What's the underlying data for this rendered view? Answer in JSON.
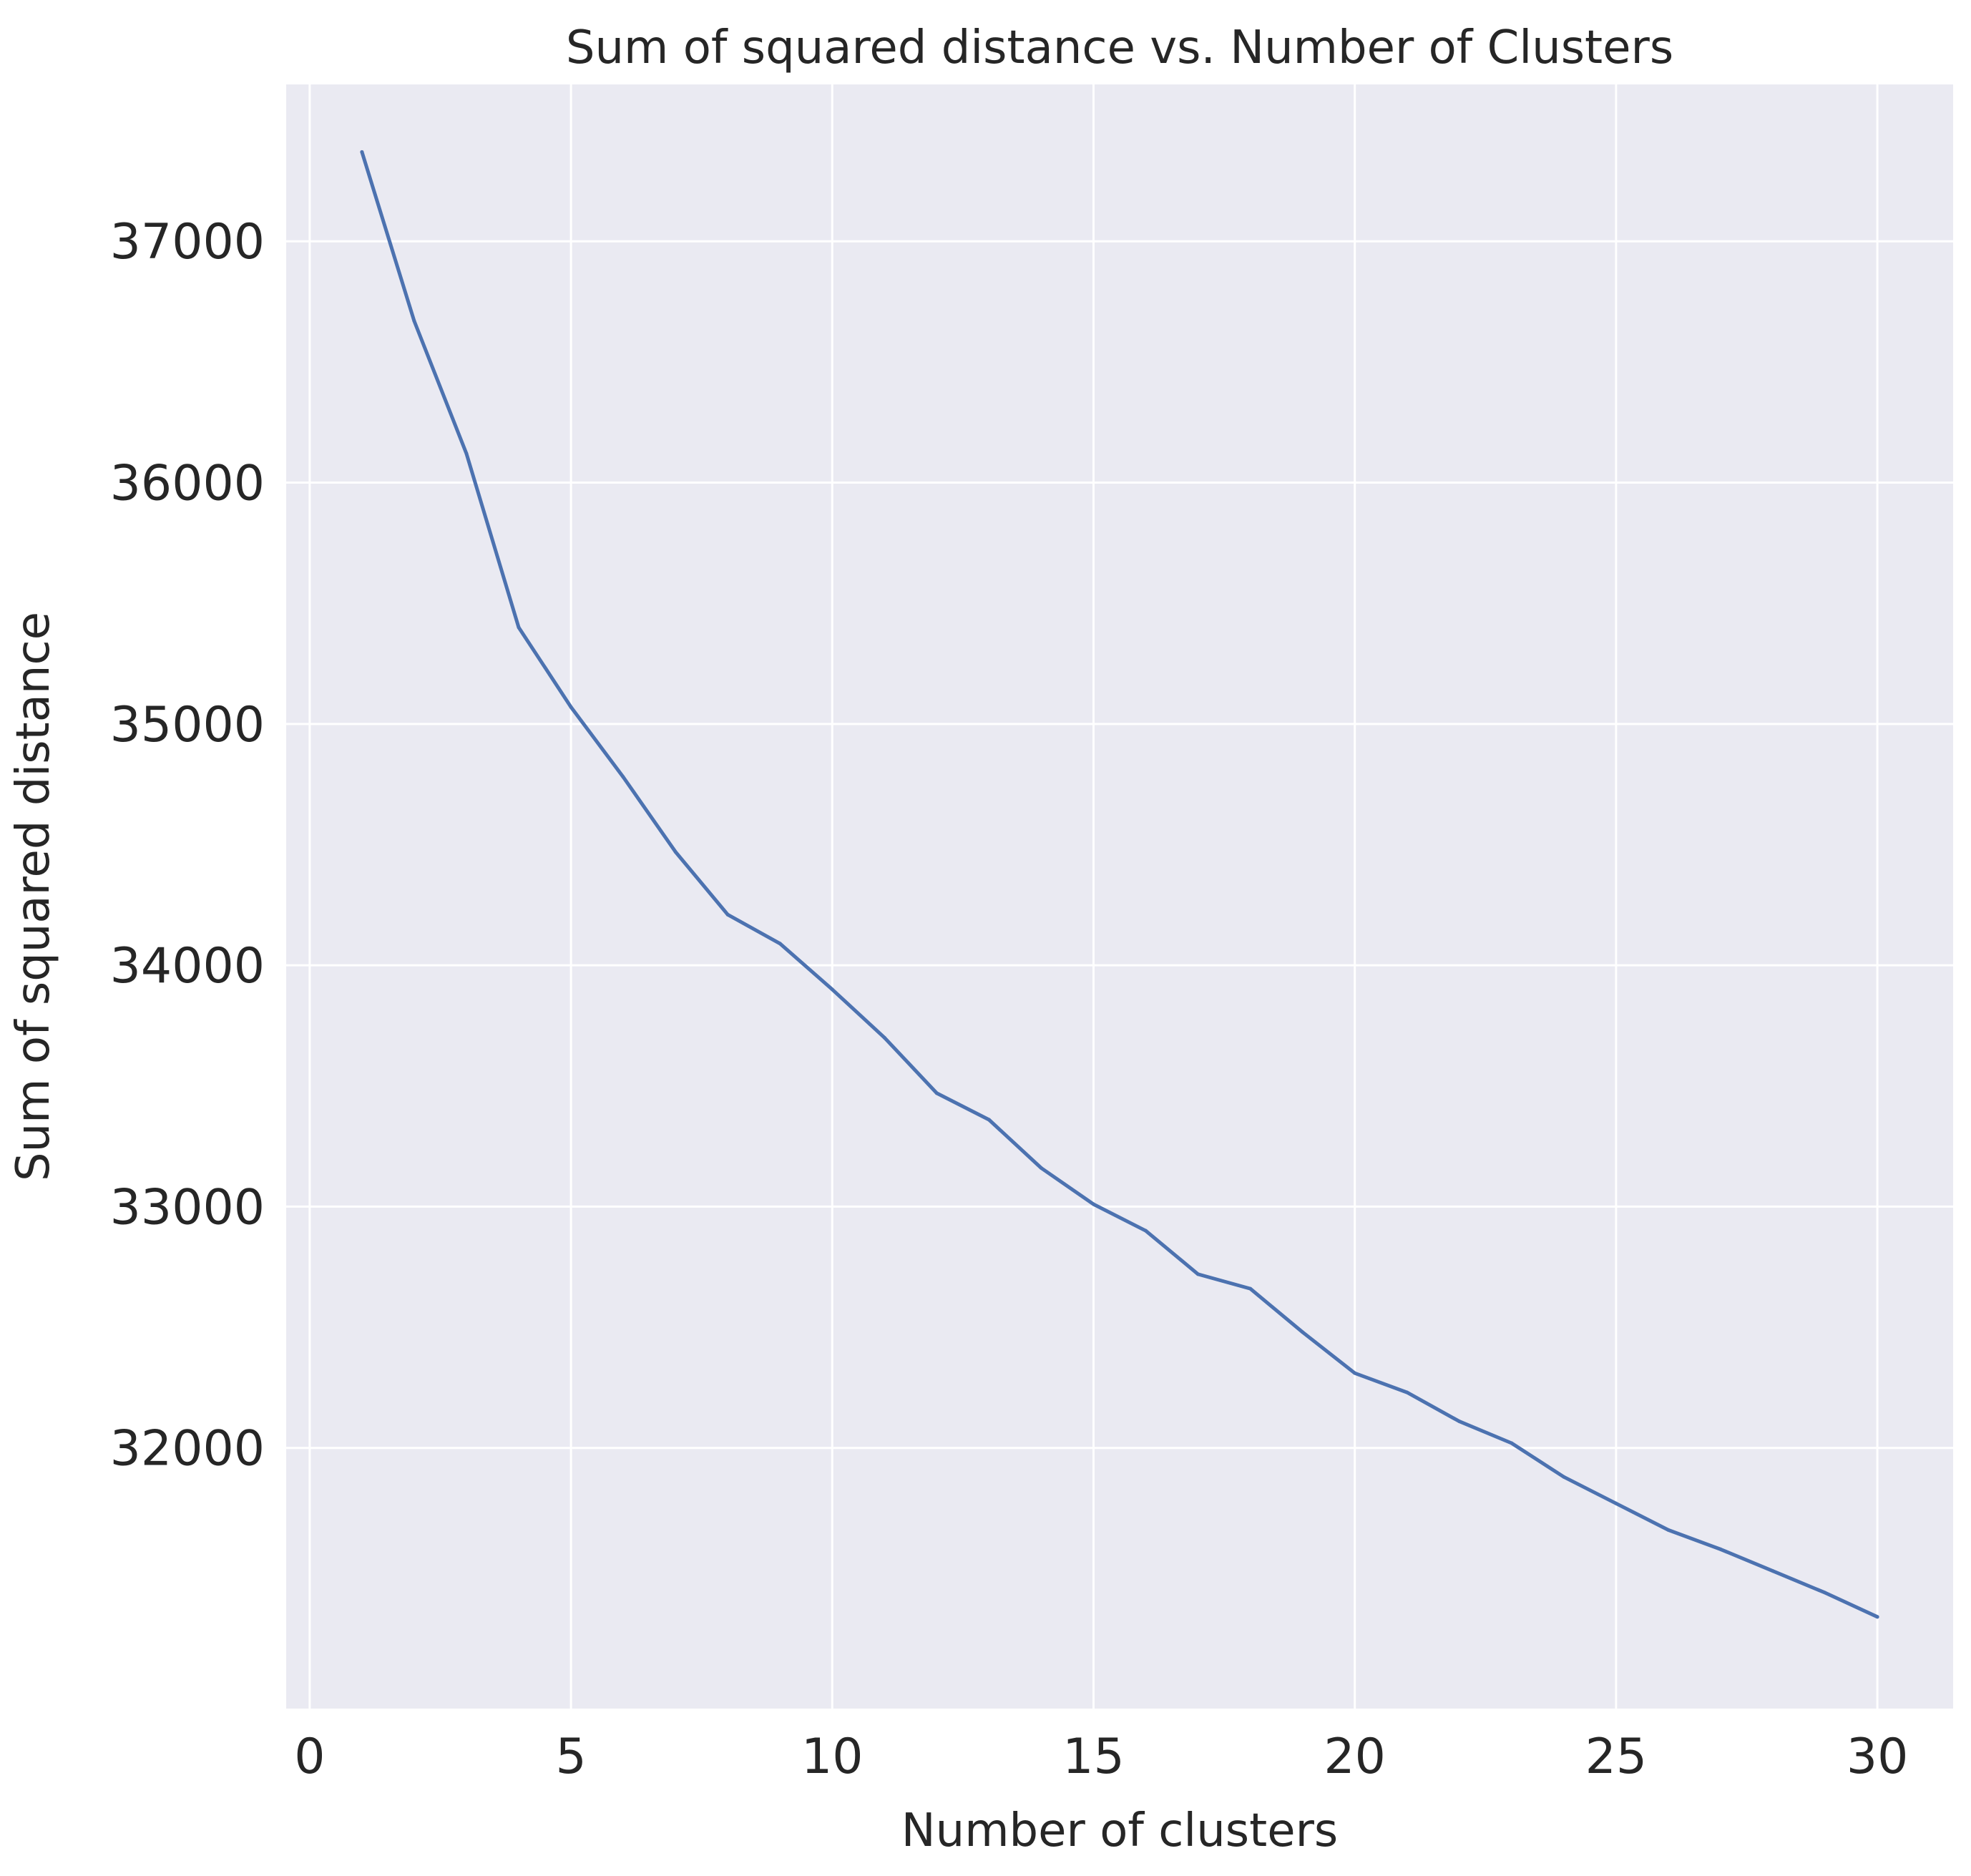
{
  "chart_data": {
    "type": "line",
    "title": "Sum of squared distance vs. Number of Clusters",
    "xlabel": "Number of clusters",
    "ylabel": "Sum of squared distance",
    "xlim": [
      -0.45,
      31.45
    ],
    "ylim": [
      30920,
      37650
    ],
    "xticks": [
      0,
      5,
      10,
      15,
      20,
      25,
      30
    ],
    "yticks": [
      32000,
      33000,
      34000,
      35000,
      36000,
      37000
    ],
    "grid": true,
    "background": "#eaeaf2",
    "grid_color": "#ffffff",
    "line_color": "#4c72b0",
    "series": [
      {
        "x": [
          1,
          2,
          3,
          4,
          5,
          6,
          7,
          8,
          9,
          10,
          11,
          12,
          13,
          14,
          15,
          16,
          17,
          18,
          19,
          20,
          21,
          22,
          23,
          24,
          25,
          26,
          27,
          28,
          29,
          30
        ],
        "values": [
          37370,
          36670,
          36120,
          35400,
          35070,
          34780,
          34470,
          34210,
          34090,
          33900,
          33700,
          33470,
          33360,
          33160,
          33010,
          32900,
          32720,
          32660,
          32480,
          32310,
          32230,
          32110,
          32020,
          31880,
          31770,
          31660,
          31580,
          31490,
          31400,
          31300
        ]
      }
    ]
  }
}
